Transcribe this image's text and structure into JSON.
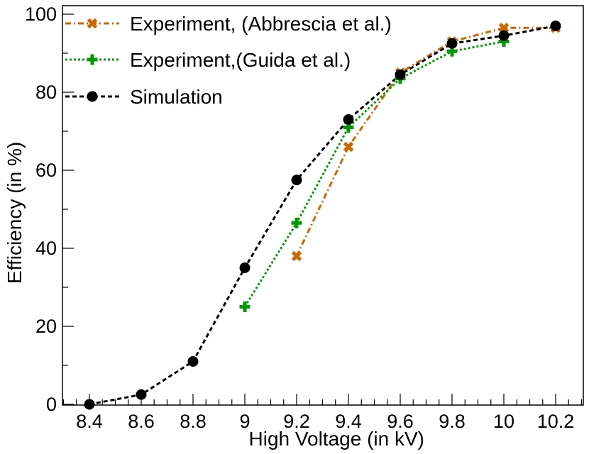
{
  "chart_data": {
    "type": "line",
    "title": "",
    "xlabel": "High Voltage (in kV)",
    "ylabel": "Efficiency (in %)",
    "xlim": [
      8.3,
      10.3
    ],
    "ylim": [
      0,
      102
    ],
    "x_ticks": [
      "8.4",
      "8.6",
      "8.8",
      "9",
      "9.2",
      "9.4",
      "9.6",
      "9.8",
      "10",
      "10.2"
    ],
    "y_ticks": [
      "0",
      "20",
      "40",
      "60",
      "80",
      "100"
    ],
    "legend_position": "top-left",
    "series": [
      {
        "name": "Experiment, (Abbrescia et al.)",
        "color": "#cc6600",
        "marker": "x",
        "line_style": "dash-dot",
        "x": [
          9.2,
          9.4,
          9.6,
          9.8,
          10.0,
          10.2
        ],
        "y": [
          38,
          66,
          85,
          93,
          96.5,
          96.5
        ]
      },
      {
        "name": "Experiment,(Guida et al.)",
        "color": "#009900",
        "marker": "plus",
        "line_style": "dotted",
        "x": [
          9.0,
          9.2,
          9.4,
          9.6,
          9.8,
          10.0
        ],
        "y": [
          25,
          46.5,
          71,
          83.5,
          90.5,
          93
        ]
      },
      {
        "name": "Simulation",
        "color": "#000000",
        "marker": "circle",
        "line_style": "dashed",
        "x": [
          8.4,
          8.6,
          8.8,
          9.0,
          9.2,
          9.4,
          9.6,
          9.8,
          10.0,
          10.2
        ],
        "y": [
          0,
          2.5,
          11,
          35,
          57.5,
          73,
          84.5,
          92.5,
          94.5,
          97
        ]
      }
    ]
  }
}
